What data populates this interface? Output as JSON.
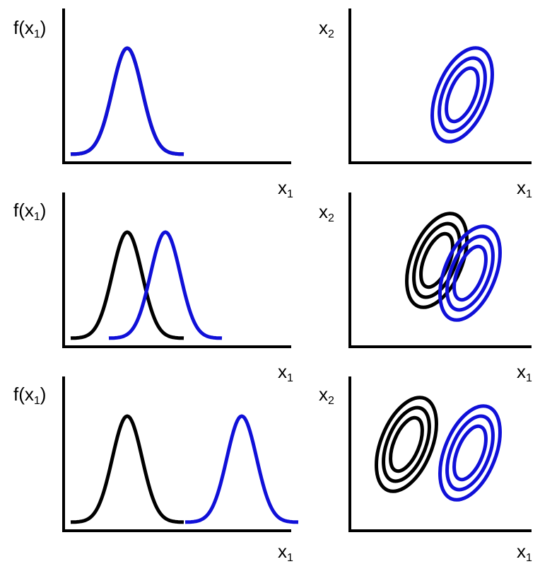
{
  "labels": {
    "f_prefix": "f(x",
    "f_sub": "1",
    "f_suffix": ")",
    "x1_main": "x",
    "x1_sub": "1",
    "x2_main": "x",
    "x2_sub": "2"
  },
  "colors": {
    "group_a": "#000000",
    "group_b": "#1010d8",
    "axis": "#000000"
  },
  "rows": [
    {
      "shift_b": 0.0,
      "overlap": "complete"
    },
    {
      "shift_b": 1.0,
      "overlap": "partial"
    },
    {
      "shift_b": 3.0,
      "overlap": "none"
    }
  ]
}
